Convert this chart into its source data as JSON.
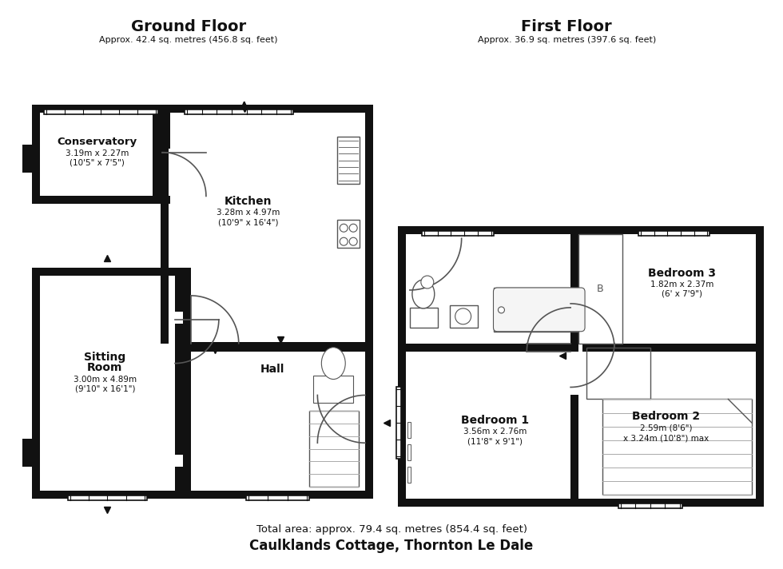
{
  "bg_color": "#ffffff",
  "wall_color": "#111111",
  "line_color": "#555555",
  "light_line_color": "#aaaaaa",
  "title_gf": "Ground Floor",
  "subtitle_gf": "Approx. 42.4 sq. metres (456.8 sq. feet)",
  "title_ff": "First Floor",
  "subtitle_ff": "Approx. 36.9 sq. metres (397.6 sq. feet)",
  "footer_line1": "Total area: approx. 79.4 sq. metres (854.4 sq. feet)",
  "footer_line2": "Caulklands Cottage, Thornton Le Dale"
}
